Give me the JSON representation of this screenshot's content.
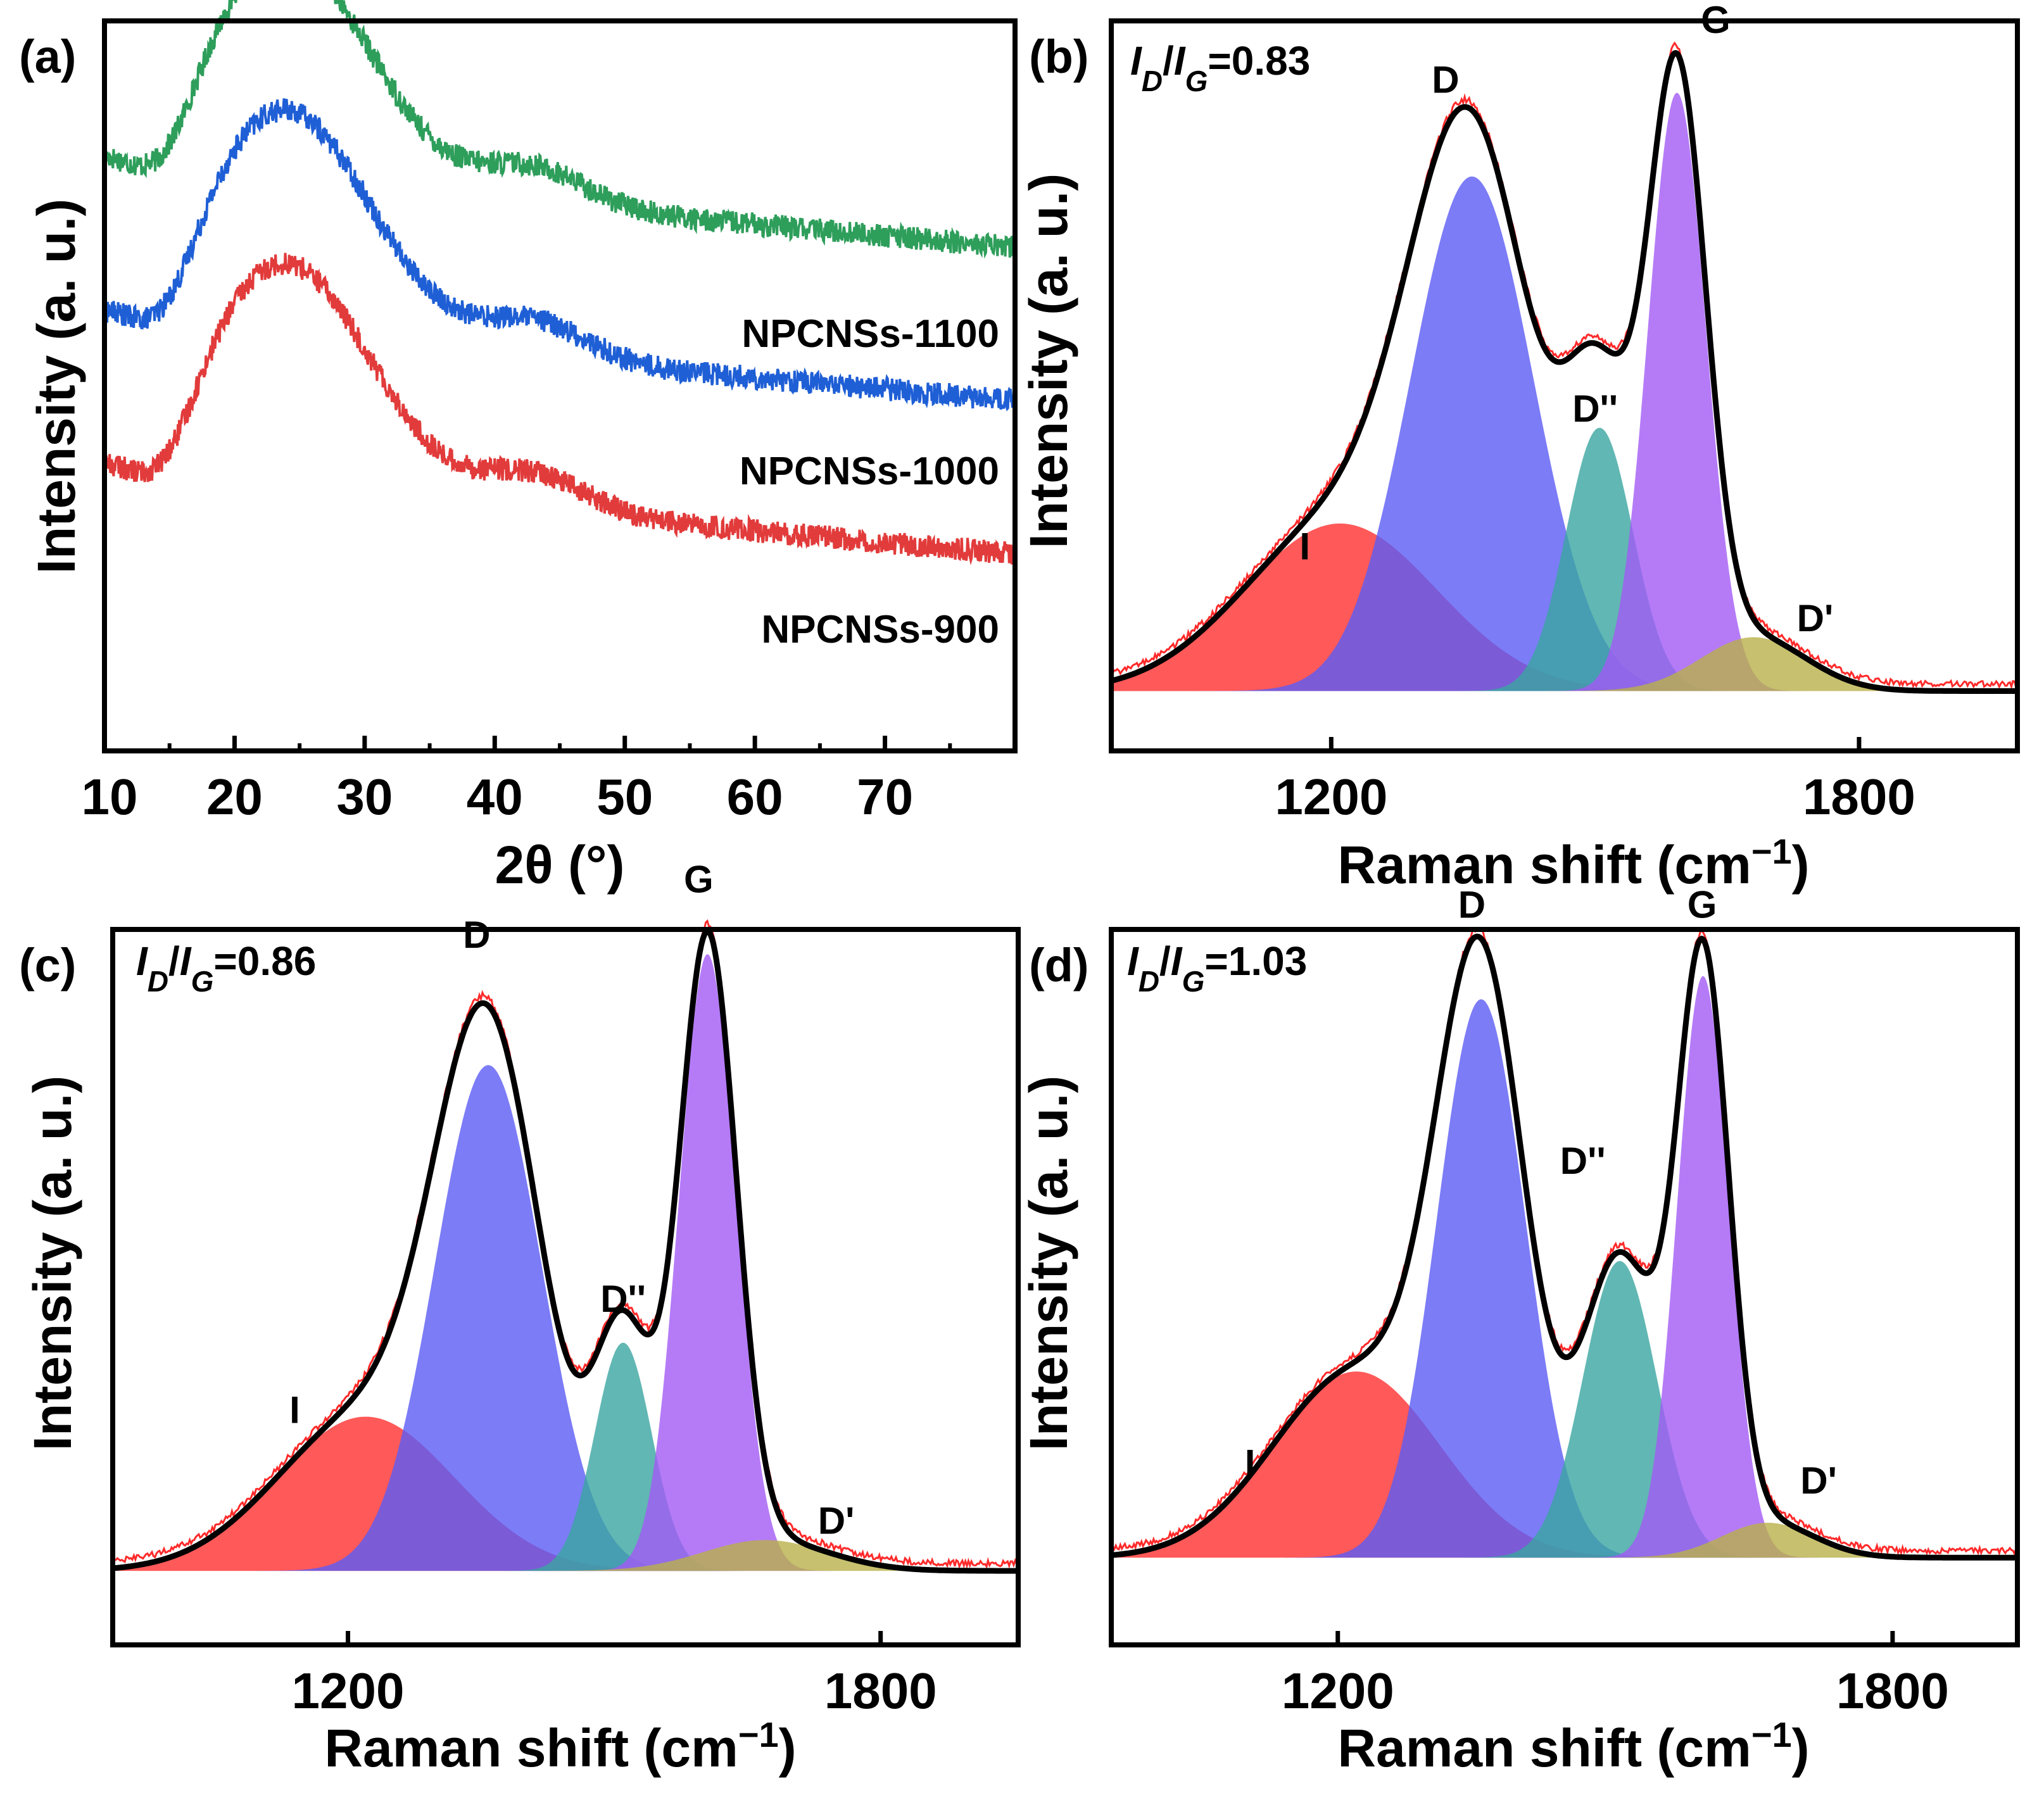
{
  "figure": {
    "title": ""
  },
  "chart_data": [
    {
      "panel": "(a)",
      "type": "line",
      "xlabel": "2θ (°)",
      "ylabel": "Intensity (a. u.)",
      "xlim": [
        10,
        80
      ],
      "ylim": [
        0,
        10
      ],
      "x_ticks": [
        10,
        20,
        30,
        40,
        50,
        60,
        70
      ],
      "x_minor_ticks": [
        15,
        25,
        35,
        45,
        55,
        65,
        75
      ],
      "series": [
        {
          "name": "NPCNSs-1100",
          "color": "#2e9e5b",
          "offset": 5.0,
          "curve": {
            "base_start": 8.0,
            "base_end": 4.0,
            "peak_center": 24,
            "peak_height": 2.5,
            "peak_width": 6.5,
            "dip_center": 14.5,
            "dip_depth": 0.4,
            "shoulder_center": 43,
            "shoulder_height": 0.25
          }
        },
        {
          "name": "NPCNSs-1000",
          "color": "#1f5fd6",
          "offset": 2.5,
          "curve": {
            "base_start": 8.0,
            "base_end": 4.0,
            "peak_center": 24,
            "peak_height": 2.5,
            "peak_width": 6.5,
            "dip_center": 14.5,
            "dip_depth": 0.4,
            "shoulder_center": 43,
            "shoulder_height": 0.25
          }
        },
        {
          "name": "NPCNSs-900",
          "color": "#e23b3b",
          "offset": 0.0,
          "curve": {
            "base_start": 8.0,
            "base_end": 4.0,
            "peak_center": 24,
            "peak_height": 2.5,
            "peak_width": 6.5,
            "dip_center": 14.5,
            "dip_depth": 0.4,
            "shoulder_center": 43,
            "shoulder_height": 0.25
          }
        }
      ]
    },
    {
      "panel": "(b)",
      "type": "area",
      "ratio_label": "=0.83",
      "xlabel": "Raman shift (cm",
      "xlabel_sup": "−1",
      "xlabel_end": ")",
      "ylabel": "Intensity (a. u.)",
      "xlim": [
        950,
        1980
      ],
      "ylim": [
        -0.1,
        1.12
      ],
      "x_ticks": [
        1200,
        1800
      ],
      "peaks": [
        {
          "name": "I",
          "center": 1210,
          "height": 0.28,
          "width": 110,
          "color": "#ff3030"
        },
        {
          "name": "D",
          "center": 1360,
          "height": 0.86,
          "width": 70,
          "color": "#5b5bf5"
        },
        {
          "name": "D''",
          "center": 1505,
          "height": 0.44,
          "width": 38,
          "color": "#3aa5a0"
        },
        {
          "name": "G",
          "center": 1593,
          "height": 1.0,
          "width": 33,
          "color": "#a35af5"
        },
        {
          "name": "D'",
          "center": 1680,
          "height": 0.09,
          "width": 60,
          "color": "#b9b04a"
        }
      ],
      "label_positions": [
        {
          "text": "I",
          "x": 1170,
          "y": 0.22
        },
        {
          "text": "D",
          "x": 1330,
          "y": 1.0
        },
        {
          "text": "D''",
          "x": 1500,
          "y": 0.45
        },
        {
          "text": "G",
          "x": 1637,
          "y": 1.1
        },
        {
          "text": "D'",
          "x": 1750,
          "y": 0.1
        }
      ]
    },
    {
      "panel": "(c)",
      "type": "area",
      "ratio_label": "=0.86",
      "xlabel": "Raman shift (cm",
      "xlabel_sup": "−1",
      "xlabel_end": ")",
      "ylabel": "Intensity (a. u.)",
      "xlim": [
        935,
        1955
      ],
      "ylim": [
        -0.12,
        1.04
      ],
      "x_ticks": [
        1200,
        1800
      ],
      "peaks": [
        {
          "name": "I",
          "center": 1220,
          "height": 0.25,
          "width": 100,
          "color": "#ff3030"
        },
        {
          "name": "D",
          "center": 1358,
          "height": 0.82,
          "width": 60,
          "color": "#5b5bf5"
        },
        {
          "name": "D''",
          "center": 1510,
          "height": 0.37,
          "width": 32,
          "color": "#3aa5a0"
        },
        {
          "name": "G",
          "center": 1605,
          "height": 1.0,
          "width": 32,
          "color": "#a35af5"
        },
        {
          "name": "D'",
          "center": 1670,
          "height": 0.05,
          "width": 70,
          "color": "#b9b04a"
        }
      ],
      "label_positions": [
        {
          "text": "I",
          "x": 1140,
          "y": 0.24
        },
        {
          "text": "D",
          "x": 1345,
          "y": 1.01
        },
        {
          "text": "D''",
          "x": 1510,
          "y": 0.42
        },
        {
          "text": "G",
          "x": 1595,
          "y": 1.1
        },
        {
          "text": "D'",
          "x": 1750,
          "y": 0.06
        }
      ]
    },
    {
      "panel": "(d)",
      "type": "area",
      "ratio_label": "=1.03",
      "xlabel": "Raman shift (cm",
      "xlabel_sup": "−1",
      "xlabel_end": ")",
      "ylabel": "Intensity (a. u.)",
      "xlim": [
        955,
        1935
      ],
      "ylim": [
        -0.15,
        1.08
      ],
      "x_ticks": [
        1200,
        1800
      ],
      "peaks": [
        {
          "name": "I",
          "center": 1220,
          "height": 0.32,
          "width": 90,
          "color": "#ff3030"
        },
        {
          "name": "D",
          "center": 1355,
          "height": 0.96,
          "width": 48,
          "color": "#5b5bf5"
        },
        {
          "name": "D''",
          "center": 1505,
          "height": 0.51,
          "width": 40,
          "color": "#3aa5a0"
        },
        {
          "name": "G",
          "center": 1595,
          "height": 1.0,
          "width": 28,
          "color": "#a35af5"
        },
        {
          "name": "D'",
          "center": 1665,
          "height": 0.06,
          "width": 50,
          "color": "#b9b04a"
        }
      ],
      "label_positions": [
        {
          "text": "I",
          "x": 1105,
          "y": 0.14
        },
        {
          "text": "D",
          "x": 1345,
          "y": 1.1
        },
        {
          "text": "D''",
          "x": 1465,
          "y": 0.66
        },
        {
          "text": "G",
          "x": 1594,
          "y": 1.1
        },
        {
          "text": "D'",
          "x": 1720,
          "y": 0.11
        }
      ]
    }
  ]
}
